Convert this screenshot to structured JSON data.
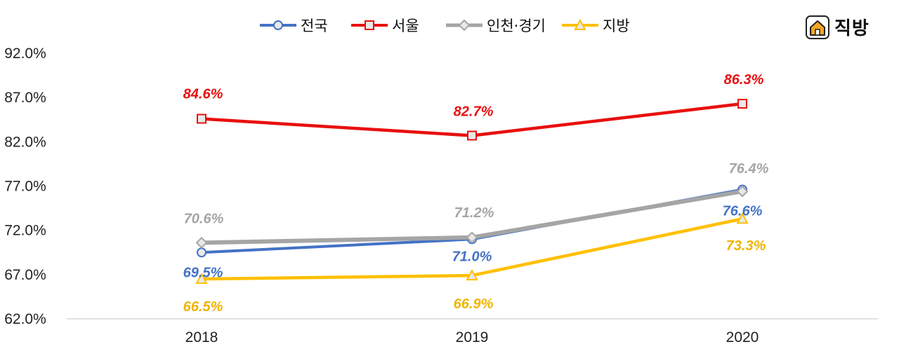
{
  "brand": {
    "name": "직방",
    "icon": "house-logo-icon",
    "color": "#F6A623"
  },
  "chart_data": {
    "type": "line",
    "categories": [
      "2018",
      "2019",
      "2020"
    ],
    "ylim": [
      62.0,
      92.0
    ],
    "yticks": [
      "92.0%",
      "87.0%",
      "82.0%",
      "77.0%",
      "72.0%",
      "67.0%",
      "62.0%"
    ],
    "legend_position": "top",
    "grid": false,
    "series": [
      {
        "name": "전국",
        "values": [
          69.5,
          71.0,
          76.6
        ],
        "labels": [
          "69.5%",
          "71.0%",
          "76.6%"
        ],
        "color": "#4472C4",
        "marker": "circle"
      },
      {
        "name": "서울",
        "values": [
          84.6,
          82.7,
          86.3
        ],
        "labels": [
          "84.6%",
          "82.7%",
          "86.3%"
        ],
        "color": "#E8100F",
        "marker": "square"
      },
      {
        "name": "인천·경기",
        "values": [
          70.6,
          71.2,
          76.4
        ],
        "labels": [
          "70.6%",
          "71.2%",
          "76.4%"
        ],
        "color": "#A5A5A5",
        "marker": "diamond"
      },
      {
        "name": "지방",
        "values": [
          66.5,
          66.9,
          73.3
        ],
        "labels": [
          "66.5%",
          "66.9%",
          "73.3%"
        ],
        "color": "#FFC000",
        "marker": "triangle"
      }
    ]
  }
}
